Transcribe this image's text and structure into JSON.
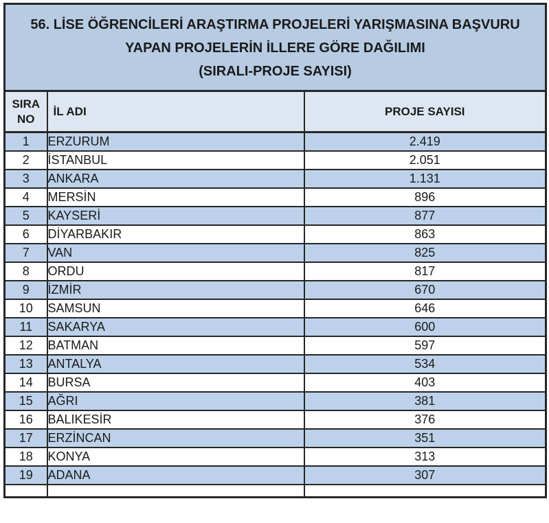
{
  "title": {
    "line1": "56. LİSE ÖĞRENCİLERİ ARAŞTIRMA PROJELERİ YARIŞMASINA BAŞVURU",
    "line2": "YAPAN PROJELERİN İLLERE GÖRE DAĞILIMI",
    "line3": "(SIRALI-PROJE SAYISI)"
  },
  "table": {
    "headers": {
      "sira_no": "SIRA NO",
      "il_adi": "İL ADI",
      "proje_sayisi": "PROJE SAYISI"
    },
    "rows": [
      {
        "no": "1",
        "il": "ERZURUM",
        "sayi": "2.419"
      },
      {
        "no": "2",
        "il": "İSTANBUL",
        "sayi": "2.051"
      },
      {
        "no": "3",
        "il": "ANKARA",
        "sayi": "1.131"
      },
      {
        "no": "4",
        "il": "MERSİN",
        "sayi": "896"
      },
      {
        "no": "5",
        "il": "KAYSERİ",
        "sayi": "877"
      },
      {
        "no": "6",
        "il": "DİYARBAKIR",
        "sayi": "863"
      },
      {
        "no": "7",
        "il": "VAN",
        "sayi": "825"
      },
      {
        "no": "8",
        "il": "ORDU",
        "sayi": "817"
      },
      {
        "no": "9",
        "il": "İZMİR",
        "sayi": "670"
      },
      {
        "no": "10",
        "il": "SAMSUN",
        "sayi": "646"
      },
      {
        "no": "11",
        "il": "SAKARYA",
        "sayi": "600"
      },
      {
        "no": "12",
        "il": "BATMAN",
        "sayi": "597"
      },
      {
        "no": "13",
        "il": "ANTALYA",
        "sayi": "534"
      },
      {
        "no": "14",
        "il": "BURSA",
        "sayi": "403"
      },
      {
        "no": "15",
        "il": "AĞRI",
        "sayi": "381"
      },
      {
        "no": "16",
        "il": "BALIKESİR",
        "sayi": "376"
      },
      {
        "no": "17",
        "il": "ERZİNCAN",
        "sayi": "351"
      },
      {
        "no": "18",
        "il": "KONYA",
        "sayi": "313"
      },
      {
        "no": "19",
        "il": "ADANA",
        "sayi": "307"
      }
    ]
  },
  "colors": {
    "title_bg": "#B7CBE3",
    "header_bg": "#DEE7F1",
    "band_bg": "#BDD2EA",
    "row_bg": "#FFFFFF",
    "border": "#262626",
    "text": "#1A1A1A"
  }
}
